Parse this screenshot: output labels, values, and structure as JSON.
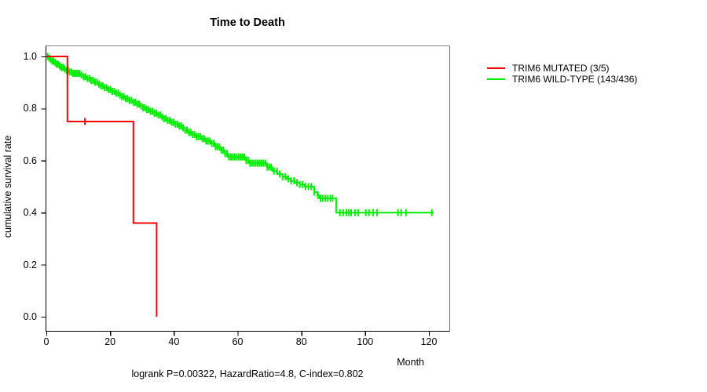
{
  "title": {
    "text": "Time to Death"
  },
  "y_axis": {
    "label": "cumulative survival rate",
    "ticks": [
      {
        "label": "1.0",
        "value": 1.0
      },
      {
        "label": "0.8",
        "value": 0.8
      },
      {
        "label": "0.6",
        "value": 0.6
      },
      {
        "label": "0.4",
        "value": 0.4
      },
      {
        "label": "0.2",
        "value": 0.2
      },
      {
        "label": "0.0",
        "value": 0.0
      }
    ]
  },
  "x_axis": {
    "label": "Month",
    "ticks": [
      {
        "label": "0",
        "value": 0
      },
      {
        "label": "20",
        "value": 20
      },
      {
        "label": "40",
        "value": 40
      },
      {
        "label": "60",
        "value": 60
      },
      {
        "label": "80",
        "value": 80
      },
      {
        "label": "100",
        "value": 100
      },
      {
        "label": "120",
        "value": 120
      }
    ]
  },
  "footer": {
    "text": "logrank P=0.00322, HazardRatio=4.8, C-index=0.802"
  },
  "legend": {
    "items": [
      {
        "label": "TRIM6 MUTATED (3/5)",
        "color": "#ff0000"
      },
      {
        "label": "TRIM6 WILD-TYPE (143/436)",
        "color": "#00ee00"
      }
    ]
  },
  "colors": {
    "mutated": "#ff0000",
    "wildtype": "#00ee00",
    "axis": "#000000",
    "box_top": "#848484",
    "box_right": "#6e6e6e"
  },
  "chart_data": {
    "type": "line",
    "subtype": "kaplan-meier-step",
    "title": "Time to Death",
    "xlabel": "Month",
    "ylabel": "cumulative survival rate",
    "xlim": [
      0,
      126.6
    ],
    "ylim": [
      0.0,
      1.0
    ],
    "grid": false,
    "legend_position": "right-outside",
    "annotation": "logrank P=0.00322, HazardRatio=4.8, C-index=0.802",
    "series": [
      {
        "name": "TRIM6 MUTATED (3/5)",
        "color": "#ff0000",
        "points": [
          [
            0,
            1.0
          ],
          [
            6.6,
            0.75
          ],
          [
            27.3,
            0.36
          ],
          [
            34.6,
            0.0
          ]
        ],
        "end_month": 34.6,
        "censor_months": [
          12.1
        ]
      },
      {
        "name": "TRIM6 WILD-TYPE (143/436)",
        "color": "#00ee00",
        "points": [
          [
            0,
            1.0
          ],
          [
            0.6,
            0.994
          ],
          [
            1.2,
            0.988
          ],
          [
            1.8,
            0.982
          ],
          [
            2.4,
            0.976
          ],
          [
            3.1,
            0.97
          ],
          [
            3.8,
            0.964
          ],
          [
            4.5,
            0.958
          ],
          [
            5.3,
            0.952
          ],
          [
            6.1,
            0.946
          ],
          [
            7.0,
            0.94
          ],
          [
            8.0,
            0.935
          ],
          [
            10.5,
            0.929
          ],
          [
            11.6,
            0.922
          ],
          [
            12.7,
            0.915
          ],
          [
            13.8,
            0.908
          ],
          [
            14.9,
            0.901
          ],
          [
            16.0,
            0.894
          ],
          [
            17.1,
            0.887
          ],
          [
            18.2,
            0.88
          ],
          [
            19.3,
            0.873
          ],
          [
            20.4,
            0.866
          ],
          [
            21.5,
            0.859
          ],
          [
            22.6,
            0.852
          ],
          [
            23.7,
            0.845
          ],
          [
            24.8,
            0.838
          ],
          [
            25.9,
            0.831
          ],
          [
            27.0,
            0.824
          ],
          [
            28.1,
            0.817
          ],
          [
            29.2,
            0.81
          ],
          [
            30.3,
            0.803
          ],
          [
            31.4,
            0.796
          ],
          [
            32.5,
            0.789
          ],
          [
            33.6,
            0.782
          ],
          [
            34.7,
            0.775
          ],
          [
            35.8,
            0.768
          ],
          [
            36.9,
            0.761
          ],
          [
            38.0,
            0.754
          ],
          [
            39.1,
            0.747
          ],
          [
            40.2,
            0.74
          ],
          [
            41.3,
            0.733
          ],
          [
            42.4,
            0.726
          ],
          [
            43.5,
            0.717
          ],
          [
            44.6,
            0.708
          ],
          [
            45.8,
            0.7
          ],
          [
            47.0,
            0.692
          ],
          [
            48.5,
            0.684
          ],
          [
            50.0,
            0.675
          ],
          [
            51.5,
            0.666
          ],
          [
            53.0,
            0.653
          ],
          [
            54.5,
            0.64
          ],
          [
            55.8,
            0.627
          ],
          [
            56.9,
            0.614
          ],
          [
            62.6,
            0.601
          ],
          [
            63.6,
            0.59
          ],
          [
            69.2,
            0.575
          ],
          [
            70.9,
            0.56
          ],
          [
            72.5,
            0.548
          ],
          [
            74.1,
            0.538
          ],
          [
            75.5,
            0.53
          ],
          [
            76.6,
            0.522
          ],
          [
            78.0,
            0.515
          ],
          [
            79.5,
            0.508
          ],
          [
            81.0,
            0.5
          ],
          [
            84.0,
            0.479
          ],
          [
            85.0,
            0.466
          ],
          [
            85.7,
            0.455
          ],
          [
            90.9,
            0.4
          ]
        ],
        "end_month": 121.5,
        "censor_months": [
          0.4,
          0.9,
          1.4,
          1.9,
          2.3,
          2.8,
          3.3,
          3.7,
          4.2,
          4.7,
          5.2,
          5.7,
          6.3,
          6.8,
          7.3,
          7.9,
          8.4,
          8.9,
          9.4,
          9.9,
          10.4,
          11.0,
          11.7,
          12.3,
          12.9,
          13.5,
          14.1,
          14.7,
          15.3,
          15.9,
          16.5,
          17.1,
          17.7,
          18.3,
          18.9,
          19.5,
          20.1,
          20.7,
          21.3,
          21.9,
          22.5,
          23.1,
          23.7,
          24.3,
          24.9,
          25.5,
          26.1,
          26.7,
          27.3,
          27.9,
          28.5,
          29.1,
          29.7,
          30.3,
          30.9,
          31.5,
          32.1,
          32.7,
          33.3,
          33.9,
          34.5,
          35.1,
          35.7,
          36.3,
          36.9,
          37.5,
          38.1,
          38.7,
          39.3,
          39.9,
          40.5,
          41.1,
          41.7,
          42.3,
          42.9,
          43.5,
          44.1,
          44.7,
          45.3,
          45.9,
          46.5,
          47.1,
          47.7,
          48.3,
          48.9,
          49.5,
          50.1,
          50.7,
          51.3,
          51.9,
          52.5,
          53.1,
          53.7,
          54.3,
          54.9,
          55.5,
          56.1,
          56.7,
          57.3,
          57.9,
          58.5,
          59.1,
          59.7,
          60.3,
          60.9,
          61.5,
          62.1,
          62.7,
          63.3,
          63.9,
          64.5,
          65.1,
          65.7,
          66.3,
          66.9,
          67.5,
          68.1,
          68.7,
          69.3,
          69.9,
          70.5,
          71.4,
          72.3,
          73.2,
          74.1,
          75.0,
          75.9,
          76.8,
          77.7,
          78.6,
          79.5,
          80.4,
          81.3,
          82.2,
          83.1,
          84.0,
          85.2,
          86.0,
          86.7,
          87.5,
          88.3,
          89.1,
          89.8,
          92.1,
          93.1,
          94.1,
          94.8,
          95.6,
          96.8,
          97.8,
          100.2,
          101.2,
          102.5,
          103.7,
          110.3,
          111.3,
          112.8,
          120.9
        ]
      }
    ]
  }
}
